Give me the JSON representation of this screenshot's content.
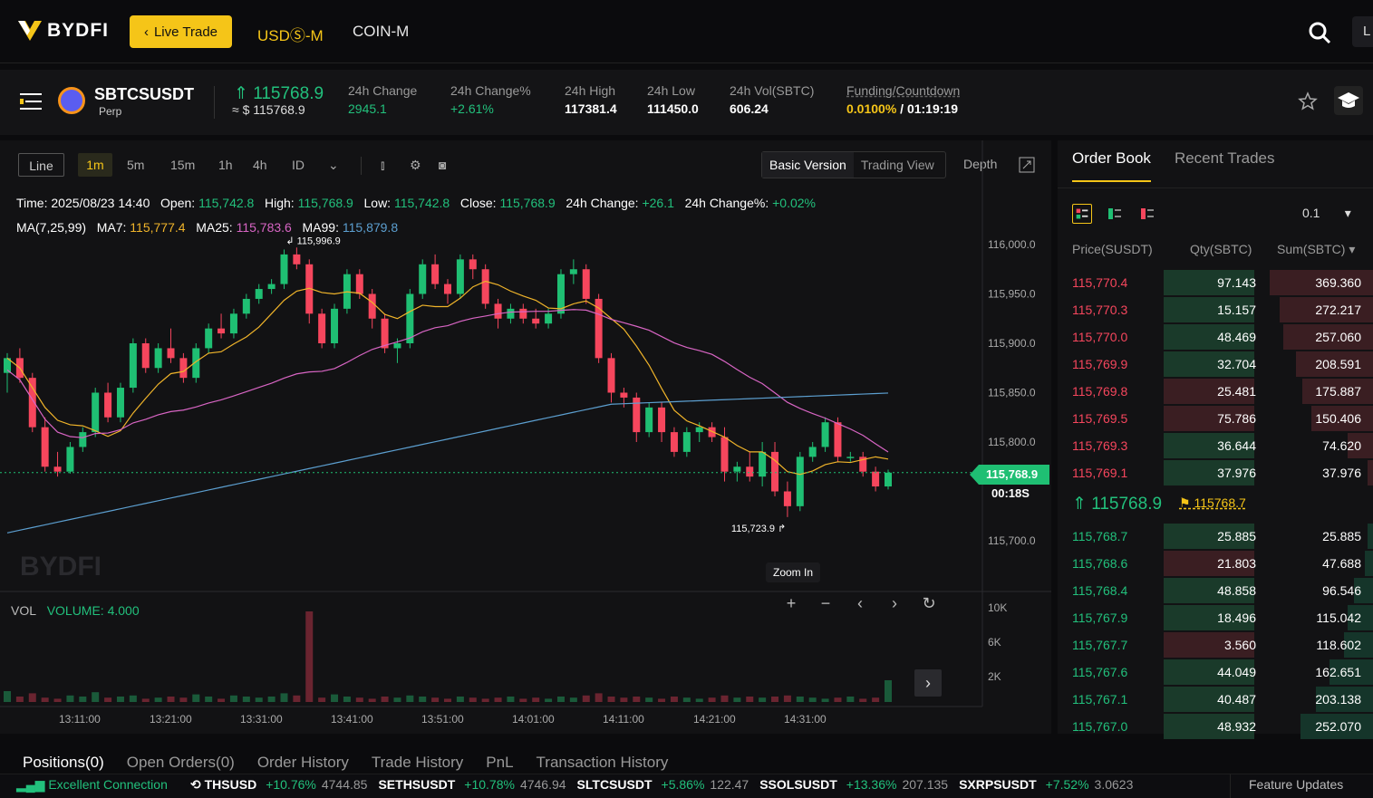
{
  "brand": "BYDFI",
  "header": {
    "live_trade": "Live Trade",
    "nav": [
      "USDⓈ-M",
      "COIN-M"
    ],
    "user_initial": "L"
  },
  "ticker": {
    "symbol": "SBTCSUSDT",
    "type": "Perp",
    "last_price": "115768.9",
    "last_usd": "≈ $ 115768.9",
    "stats": [
      {
        "label": "24h Change",
        "value": "2945.1",
        "green": true
      },
      {
        "label": "24h Change%",
        "value": "+2.61%",
        "green": true
      },
      {
        "label": "24h High",
        "value": "117381.4",
        "green": false
      },
      {
        "label": "24h Low",
        "value": "111450.0",
        "green": false
      },
      {
        "label": "24h Vol(SBTC)",
        "value": "606.24",
        "green": false
      }
    ],
    "funding_label": "Funding/Countdown",
    "funding_rate": "0.0100%",
    "funding_countdown": "/ 01:19:19"
  },
  "toolbar": {
    "line": "Line",
    "intervals": [
      "1m",
      "5m",
      "15m",
      "1h",
      "4h",
      "ID"
    ],
    "active_interval": "1m",
    "versions": [
      "Basic Version",
      "Trading View"
    ],
    "depth": "Depth"
  },
  "ohlc": {
    "time_label": "Time:",
    "time": "2025/08/23 14:40",
    "open_label": "Open:",
    "open": "115,742.8",
    "high_label": "High:",
    "high": "115,768.9",
    "low_label": "Low:",
    "low": "115,742.8",
    "close_label": "Close:",
    "close": "115,768.9",
    "chg_label": "24h Change:",
    "chg": "+26.1",
    "chgp_label": "24h Change%:",
    "chgp": "+0.02%"
  },
  "ma": {
    "label": "MA(7,25,99)",
    "ma7_label": "MA7:",
    "ma7": "115,777.4",
    "ma25_label": "MA25:",
    "ma25": "115,783.6",
    "ma99_label": "MA99:",
    "ma99": "115,879.8"
  },
  "chart_data": {
    "type": "candlestick",
    "y_ticks": [
      "116,000.0",
      "115,950.0",
      "115,900.0",
      "115,850.0",
      "115,800.0",
      "115,700.0"
    ],
    "y_tick_values": [
      116000,
      115950,
      115900,
      115850,
      115800,
      115700
    ],
    "x_ticks": [
      "13:11:00",
      "13:21:00",
      "13:31:00",
      "13:41:00",
      "13:51:00",
      "14:01:00",
      "14:11:00",
      "14:21:00",
      "14:31:00"
    ],
    "high_annotation": "115,996.9",
    "low_annotation": "115,723.9",
    "current_price": "115,768.9",
    "countdown": "00:18S",
    "volume_label": "VOL",
    "volume_value": "VOLUME: 4.000",
    "vol_ticks": [
      "10K",
      "6K",
      "2K"
    ],
    "zoom_tip": "Zoom In",
    "candles": [
      [
        115870,
        115890,
        115850,
        115885
      ],
      [
        115885,
        115895,
        115860,
        115865
      ],
      [
        115865,
        115870,
        115810,
        115815
      ],
      [
        115815,
        115825,
        115770,
        115775
      ],
      [
        115775,
        115790,
        115765,
        115770
      ],
      [
        115770,
        115800,
        115768,
        115795
      ],
      [
        115795,
        115815,
        115790,
        115810
      ],
      [
        115810,
        115855,
        115805,
        115850
      ],
      [
        115850,
        115860,
        115820,
        115825
      ],
      [
        115825,
        115860,
        115820,
        115855
      ],
      [
        115855,
        115905,
        115850,
        115900
      ],
      [
        115900,
        115905,
        115870,
        115875
      ],
      [
        115875,
        115900,
        115870,
        115895
      ],
      [
        115895,
        115915,
        115880,
        115885
      ],
      [
        115885,
        115890,
        115860,
        115865
      ],
      [
        115865,
        115900,
        115860,
        115895
      ],
      [
        115895,
        115920,
        115890,
        115915
      ],
      [
        115915,
        115930,
        115905,
        115910
      ],
      [
        115910,
        115935,
        115905,
        115930
      ],
      [
        115930,
        115950,
        115925,
        115945
      ],
      [
        115945,
        115960,
        115940,
        115955
      ],
      [
        115955,
        115965,
        115950,
        115960
      ],
      [
        115960,
        115995,
        115955,
        115990
      ],
      [
        115990,
        115997,
        115975,
        115980
      ],
      [
        115980,
        115985,
        115920,
        115930
      ],
      [
        115930,
        115935,
        115895,
        115900
      ],
      [
        115900,
        115940,
        115895,
        115935
      ],
      [
        115935,
        115975,
        115930,
        115970
      ],
      [
        115970,
        115975,
        115945,
        115950
      ],
      [
        115950,
        115955,
        115915,
        115925
      ],
      [
        115925,
        115930,
        115890,
        115895
      ],
      [
        115895,
        115905,
        115880,
        115900
      ],
      [
        115900,
        115955,
        115895,
        115950
      ],
      [
        115950,
        115985,
        115945,
        115980
      ],
      [
        115980,
        115990,
        115955,
        115960
      ],
      [
        115960,
        115965,
        115940,
        115950
      ],
      [
        115950,
        115990,
        115945,
        115985
      ],
      [
        115985,
        115990,
        115965,
        115975
      ],
      [
        115975,
        115980,
        115935,
        115940
      ],
      [
        115940,
        115945,
        115915,
        115925
      ],
      [
        115925,
        115940,
        115920,
        115935
      ],
      [
        115935,
        115940,
        115920,
        115925
      ],
      [
        115925,
        115935,
        115915,
        115920
      ],
      [
        115920,
        115935,
        115915,
        115930
      ],
      [
        115930,
        115975,
        115925,
        115970
      ],
      [
        115970,
        115985,
        115960,
        115975
      ],
      [
        115975,
        115980,
        115940,
        115945
      ],
      [
        115945,
        115950,
        115880,
        115885
      ],
      [
        115885,
        115890,
        115840,
        115850
      ],
      [
        115850,
        115855,
        115835,
        115845
      ],
      [
        115845,
        115850,
        115800,
        115810
      ],
      [
        115810,
        115840,
        115805,
        115835
      ],
      [
        115835,
        115840,
        115800,
        115810
      ],
      [
        115810,
        115815,
        115785,
        115790
      ],
      [
        115790,
        115815,
        115785,
        115810
      ],
      [
        115810,
        115820,
        115800,
        115815
      ],
      [
        115815,
        115820,
        115800,
        115805
      ],
      [
        115805,
        115815,
        115760,
        115770
      ],
      [
        115770,
        115780,
        115760,
        115775
      ],
      [
        115775,
        115790,
        115760,
        115765
      ],
      [
        115765,
        115800,
        115755,
        115790
      ],
      [
        115790,
        115800,
        115745,
        115750
      ],
      [
        115750,
        115760,
        115724,
        115735
      ],
      [
        115735,
        115790,
        115730,
        115785
      ],
      [
        115785,
        115800,
        115780,
        115795
      ],
      [
        115795,
        115825,
        115790,
        115820
      ],
      [
        115820,
        115825,
        115780,
        115785
      ],
      [
        115785,
        115790,
        115780,
        115785
      ],
      [
        115785,
        115790,
        115765,
        115770
      ],
      [
        115770,
        115775,
        115750,
        115755
      ],
      [
        115755,
        115772,
        115752,
        115769
      ]
    ],
    "volumes": [
      0.1,
      0.05,
      0.08,
      0.04,
      0.03,
      0.06,
      0.05,
      0.09,
      0.04,
      0.05,
      0.06,
      0.03,
      0.04,
      0.05,
      0.04,
      0.07,
      0.05,
      0.03,
      0.06,
      0.05,
      0.04,
      0.05,
      0.08,
      0.06,
      0.05,
      0.04,
      0.07,
      0.05,
      0.04,
      0.03,
      0.05,
      0.04,
      0.06,
      0.05,
      0.04,
      0.03,
      0.05,
      0.04,
      0.03,
      0.04,
      0.05,
      0.03,
      0.04,
      0.03,
      0.05,
      0.04,
      0.06,
      0.08,
      0.05,
      0.04,
      0.05,
      0.04,
      0.03,
      0.05,
      0.04,
      0.03,
      0.04,
      0.06,
      0.04,
      0.05,
      0.04,
      0.05,
      0.06,
      0.05,
      0.04,
      0.03,
      0.04,
      0.05,
      0.03,
      0.04,
      0.2
    ],
    "big_volume_index": 24,
    "colors": {
      "up": "#1fbf73",
      "down": "#f6465d",
      "ma7": "#f0b42a",
      "ma25": "#d865c4",
      "ma99": "#5c9fd0"
    }
  },
  "orderbook": {
    "tabs": [
      "Order Book",
      "Recent Trades"
    ],
    "precision": "0.1",
    "headers": [
      "Price(SUSDT)",
      "Qty(SBTC)",
      "Sum(SBTC) ▾"
    ],
    "asks": [
      {
        "price": "115,770.4",
        "qty": "97.143",
        "sum": "369.360",
        "qd": 1.0,
        "sd": 1.0
      },
      {
        "price": "115,770.3",
        "qty": "15.157",
        "sum": "272.217",
        "qd": 1.0,
        "sd": 0.9
      },
      {
        "price": "115,770.0",
        "qty": "48.469",
        "sum": "257.060",
        "qd": 1.0,
        "sd": 0.87
      },
      {
        "price": "115,769.9",
        "qty": "32.704",
        "sum": "208.591",
        "qd": 1.0,
        "sd": 0.75
      },
      {
        "price": "115,769.8",
        "qty": "25.481",
        "sum": "175.887",
        "qd": 0.0,
        "sd": 0.68
      },
      {
        "price": "115,769.5",
        "qty": "75.786",
        "sum": "150.406",
        "qd": 0.0,
        "sd": 0.6
      },
      {
        "price": "115,769.3",
        "qty": "36.644",
        "sum": "74.620",
        "qd": 1.0,
        "sd": 0.25
      },
      {
        "price": "115,769.1",
        "qty": "37.976",
        "sum": "37.976",
        "qd": 1.0,
        "sd": 0.05
      }
    ],
    "mid_price": "115768.9",
    "mark_price": "115768.7",
    "bids": [
      {
        "price": "115,768.7",
        "qty": "25.885",
        "sum": "25.885",
        "qd": 1.0,
        "sd": 0.05
      },
      {
        "price": "115,768.6",
        "qty": "21.803",
        "sum": "47.688",
        "qd": 0.0,
        "sd": 0.08
      },
      {
        "price": "115,768.4",
        "qty": "48.858",
        "sum": "96.546",
        "qd": 1.0,
        "sd": 0.18
      },
      {
        "price": "115,767.9",
        "qty": "18.496",
        "sum": "115.042",
        "qd": 1.0,
        "sd": 0.25
      },
      {
        "price": "115,767.7",
        "qty": "3.560",
        "sum": "118.602",
        "qd": 0.0,
        "sd": 0.28
      },
      {
        "price": "115,767.6",
        "qty": "44.049",
        "sum": "162.651",
        "qd": 1.0,
        "sd": 0.42
      },
      {
        "price": "115,767.1",
        "qty": "40.487",
        "sum": "203.138",
        "qd": 1.0,
        "sd": 0.55
      },
      {
        "price": "115,767.0",
        "qty": "48.932",
        "sum": "252.070",
        "qd": 1.0,
        "sd": 0.7
      }
    ]
  },
  "bottom": {
    "tabs": [
      "Positions(0)",
      "Open Orders(0)",
      "Order History",
      "Trade History",
      "PnL",
      "Transaction History"
    ],
    "connection": "Excellent Connection",
    "tickers": [
      {
        "name": "THSUSD",
        "change": "+10.76%",
        "price": "4744.85"
      },
      {
        "name": "SETHSUSDT",
        "change": "+10.78%",
        "price": "4746.94"
      },
      {
        "name": "SLTCSUSDT",
        "change": "+5.86%",
        "price": "122.47"
      },
      {
        "name": "SSOLSUSDT",
        "change": "+13.36%",
        "price": "207.135"
      },
      {
        "name": "SXRPSUSDT",
        "change": "+7.52%",
        "price": "3.0623"
      }
    ],
    "feature": "Feature Updates"
  }
}
